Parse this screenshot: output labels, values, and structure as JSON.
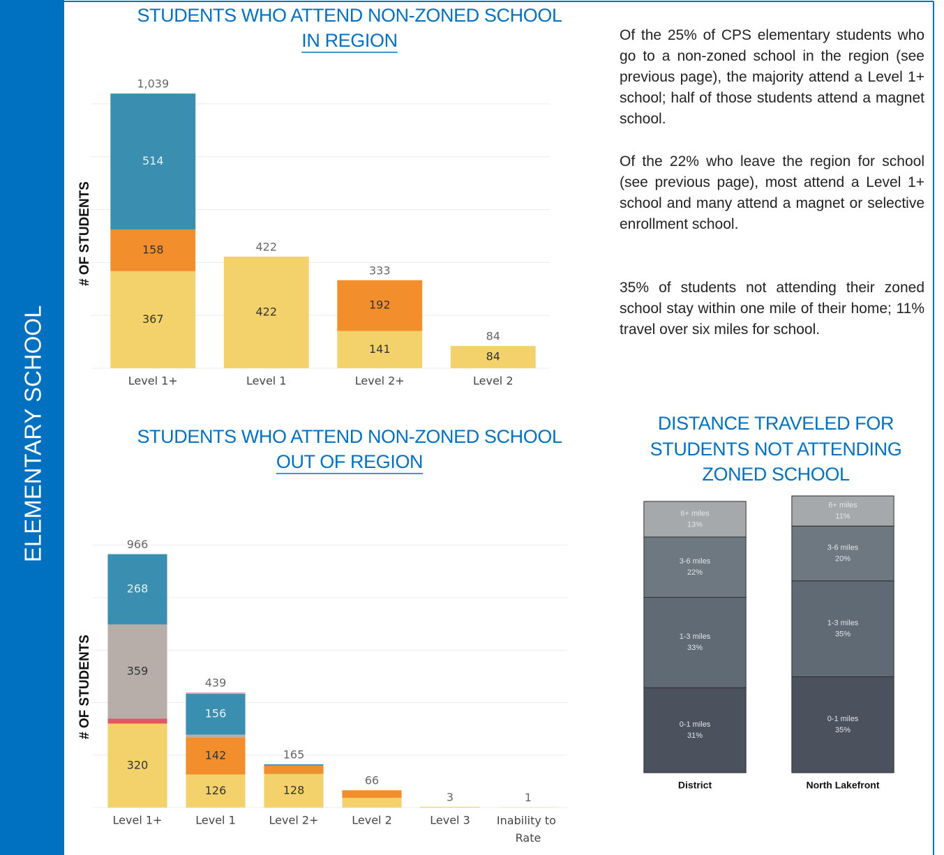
{
  "sidebar": "ELEMENTARY SCHOOL",
  "paragraphs": [
    "Of the 25% of CPS elementary students who go to a non-zoned school in the region (see previous page), the majority attend a Level 1+ school; half of those students attend a magnet school.",
    "Of the 22% who leave the region for school (see previous page), most attend a Level 1+ school and many attend a magnet or selective enrollment school.",
    "35% of students not attending their zoned school stay within one mile of their home; 11% travel over six miles for school."
  ],
  "chart_data": [
    {
      "type": "stacked_bar",
      "title_lines": [
        "STUDENTS WHO ATTEND NON-ZONED SCHOOL",
        "IN REGION"
      ],
      "underlined_line": 1,
      "y_label": "# OF STUDENTS",
      "categories": [
        "Level 1+",
        "Level 1",
        "Level 2+",
        "Level 2"
      ],
      "series": [
        {
          "color": "#f3d16b",
          "label_color": "#333333",
          "values": [
            367,
            422,
            141,
            84
          ]
        },
        {
          "color": "#f28e2b",
          "label_color": "#333333",
          "values": [
            158,
            null,
            192,
            null
          ]
        },
        {
          "color": "#3a8fb0",
          "label_color": "#e6f2f7",
          "values": [
            514,
            null,
            null,
            null
          ]
        }
      ],
      "totals": [
        1039,
        422,
        333,
        84
      ],
      "totals_labels": [
        "1,039",
        "422",
        "333",
        "84"
      ],
      "ylim": [
        0,
        1100
      ],
      "yticks": [
        0,
        200,
        400,
        600,
        800,
        1000
      ],
      "grid": true
    },
    {
      "type": "stacked_bar",
      "title_lines": [
        "STUDENTS WHO ATTEND NON-ZONED SCHOOL",
        "OUT OF REGION"
      ],
      "underlined_line": 1,
      "y_label": "# OF STUDENTS",
      "categories": [
        "Level 1+",
        "Level 1",
        "Level 2+",
        "Level 2",
        "Level 3",
        "Inability to Rate"
      ],
      "series": [
        {
          "color": "#f3d16b",
          "label_color": "#333333",
          "values": [
            320,
            126,
            128,
            37,
            3,
            1
          ]
        },
        {
          "color": "#f28e2b",
          "label_color": "#333333",
          "values": [
            null,
            142,
            32,
            29,
            null,
            null
          ]
        },
        {
          "color": "#e15767",
          "label_color": "#333333",
          "values": [
            19,
            null,
            null,
            null,
            null,
            null
          ]
        },
        {
          "color": "#b8aea9",
          "label_color": "#333333",
          "values": [
            359,
            10,
            null,
            null,
            null,
            null
          ]
        },
        {
          "color": "#3a8fb0",
          "label_color": "#e6f2f7",
          "values": [
            268,
            156,
            5,
            null,
            null,
            null
          ]
        },
        {
          "color": "#e6a3c0",
          "label_color": "#333333",
          "values": [
            null,
            5,
            null,
            null,
            null,
            null
          ]
        }
      ],
      "totals": [
        966,
        439,
        165,
        66,
        3,
        1
      ],
      "ylim": [
        0,
        1050
      ],
      "yticks": [
        0,
        200,
        400,
        600,
        800,
        1000
      ],
      "grid": true
    },
    {
      "type": "stacked_percent",
      "title_lines": [
        "DISTANCE TRAVELED FOR",
        "STUDENTS NOT ATTENDING",
        "ZONED SCHOOL"
      ],
      "categories": [
        "District",
        "North Lakefront"
      ],
      "series": [
        {
          "name": "0-1 miles",
          "color": "#4b525d",
          "values": [
            31,
            35
          ],
          "value_labels": [
            "31%",
            "35%"
          ]
        },
        {
          "name": "1-3 miles",
          "color": "#5f6a74",
          "values": [
            33,
            35
          ],
          "value_labels": [
            "33%",
            "35%"
          ]
        },
        {
          "name": "3-6 miles",
          "color": "#6d7881",
          "values": [
            22,
            20
          ],
          "value_labels": [
            "22%",
            "20%"
          ]
        },
        {
          "name": "6+ miles",
          "color": "#a6a9ac",
          "values": [
            13,
            11
          ],
          "value_labels": [
            "13%",
            "11%"
          ]
        }
      ],
      "ylim": [
        0,
        100
      ],
      "grid": false
    }
  ]
}
